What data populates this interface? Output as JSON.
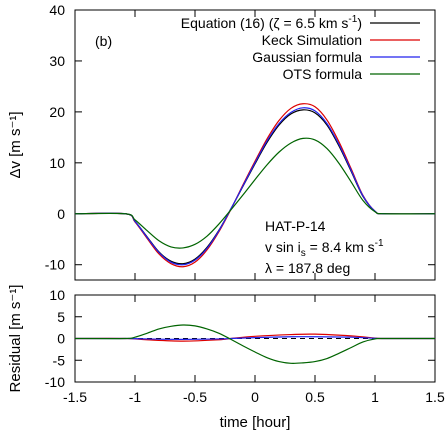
{
  "chart_data": [
    {
      "type": "line",
      "panel_label": "(b)",
      "ylabel": "Δv [m s⁻¹]",
      "xlim": [
        -1.5,
        1.5
      ],
      "ylim": [
        -13,
        40
      ],
      "yticks": [
        -10,
        0,
        10,
        20,
        30,
        40
      ],
      "ytick_labels": [
        "-10",
        "0",
        "10",
        "20",
        "30",
        "40"
      ],
      "legend_position": "top-right",
      "annotation": {
        "line1": "HAT-P-14",
        "line2": "v sin i",
        "line2_sub": "s",
        "line2_rest": " = 8.4 km s",
        "line2_sup": "-1",
        "line3": "λ = 187.8 deg"
      },
      "series": [
        {
          "name": "Equation (16) (ζ = 6.5 km s⁻¹)",
          "legend": {
            "pre": "Equation (16) (ζ = 6.5 km s",
            "sup": "-1",
            "post": ")"
          },
          "color": "#000000",
          "x": [
            -1.5,
            -1.08,
            -1.0,
            -0.9,
            -0.8,
            -0.7,
            -0.6,
            -0.5,
            -0.4,
            -0.3,
            -0.2,
            -0.1,
            0.0,
            0.1,
            0.2,
            0.3,
            0.4,
            0.5,
            0.6,
            0.7,
            0.8,
            0.9,
            1.0,
            1.08,
            1.5
          ],
          "y": [
            0,
            0,
            -1.5,
            -4.5,
            -7.5,
            -9.3,
            -9.8,
            -8.9,
            -6.6,
            -3.2,
            1.0,
            5.4,
            9.8,
            14.0,
            17.4,
            19.6,
            20.4,
            19.8,
            17.4,
            13.3,
            8.4,
            3.4,
            0.5,
            0,
            0
          ]
        },
        {
          "name": "Keck Simulation",
          "color": "#dd0000",
          "x": [
            -1.5,
            -1.08,
            -1.0,
            -0.9,
            -0.8,
            -0.7,
            -0.6,
            -0.5,
            -0.4,
            -0.3,
            -0.2,
            -0.1,
            0.0,
            0.1,
            0.2,
            0.3,
            0.4,
            0.5,
            0.6,
            0.7,
            0.8,
            0.9,
            1.0,
            1.08,
            1.5
          ],
          "y": [
            0,
            0,
            -1.6,
            -4.8,
            -7.9,
            -9.8,
            -10.4,
            -9.5,
            -7.1,
            -3.5,
            0.9,
            5.7,
            10.3,
            14.7,
            18.3,
            20.7,
            21.6,
            21.0,
            18.4,
            14.1,
            8.9,
            3.6,
            0.5,
            0,
            0
          ]
        },
        {
          "name": "Gaussian formula",
          "color": "#2222ee",
          "x": [
            -1.5,
            -1.08,
            -1.0,
            -0.9,
            -0.8,
            -0.7,
            -0.6,
            -0.5,
            -0.4,
            -0.3,
            -0.2,
            -0.1,
            0.0,
            0.1,
            0.2,
            0.3,
            0.4,
            0.5,
            0.6,
            0.7,
            0.8,
            0.9,
            1.0,
            1.08,
            1.5
          ],
          "y": [
            0,
            0,
            -1.5,
            -4.6,
            -7.6,
            -9.5,
            -10.0,
            -9.1,
            -6.8,
            -3.3,
            1.0,
            5.5,
            10.0,
            14.3,
            17.7,
            19.9,
            20.8,
            20.2,
            17.7,
            13.6,
            8.6,
            3.5,
            0.5,
            0,
            0
          ]
        },
        {
          "name": "OTS formula",
          "color": "#006400",
          "x": [
            -1.5,
            -1.08,
            -1.0,
            -0.9,
            -0.8,
            -0.7,
            -0.6,
            -0.5,
            -0.4,
            -0.3,
            -0.2,
            -0.1,
            0.0,
            0.1,
            0.2,
            0.3,
            0.4,
            0.5,
            0.6,
            0.7,
            0.8,
            0.9,
            1.0,
            1.08,
            1.5
          ],
          "y": [
            0,
            0,
            -1.2,
            -3.3,
            -5.3,
            -6.5,
            -6.7,
            -6.0,
            -4.4,
            -2.0,
            0.8,
            3.7,
            6.7,
            9.6,
            12.1,
            13.9,
            14.8,
            14.5,
            12.8,
            9.9,
            6.3,
            2.6,
            0.4,
            0,
            0
          ]
        }
      ]
    },
    {
      "type": "line",
      "ylabel": "Residual [m s⁻¹]",
      "xlabel": "time [hour]",
      "xlim": [
        -1.5,
        1.5
      ],
      "ylim": [
        -10,
        10
      ],
      "xticks": [
        -1.5,
        -1,
        -0.5,
        0,
        0.5,
        1,
        1.5
      ],
      "xtick_labels": [
        "-1.5",
        "-1",
        "-0.5",
        "0",
        "0.5",
        "1",
        "1.5"
      ],
      "yticks": [
        -10,
        -5,
        0,
        5,
        10
      ],
      "ytick_labels": [
        "-10",
        "-5",
        "0",
        "5",
        "10"
      ],
      "zero_line": "dashed",
      "series": [
        {
          "color": "#dd0000",
          "x": [
            -1.5,
            -1.08,
            -0.9,
            -0.6,
            -0.3,
            -0.2,
            0.0,
            0.3,
            0.5,
            0.8,
            1.0,
            1.08,
            1.5
          ],
          "y": [
            0,
            0,
            -0.3,
            -0.6,
            -0.3,
            0.0,
            0.5,
            0.9,
            1.0,
            0.6,
            0.1,
            0,
            0
          ]
        },
        {
          "color": "#2222ee",
          "x": [
            -1.5,
            -1.08,
            -0.9,
            -0.6,
            -0.3,
            -0.2,
            0.0,
            0.3,
            0.5,
            0.8,
            1.0,
            1.08,
            1.5
          ],
          "y": [
            0,
            0,
            -0.1,
            -0.2,
            -0.1,
            0.0,
            0.2,
            0.4,
            0.4,
            0.3,
            0.05,
            0,
            0
          ]
        },
        {
          "color": "#006400",
          "x": [
            -1.5,
            -1.08,
            -1.0,
            -0.9,
            -0.8,
            -0.7,
            -0.6,
            -0.5,
            -0.4,
            -0.3,
            -0.2,
            -0.1,
            0.0,
            0.1,
            0.2,
            0.3,
            0.4,
            0.5,
            0.6,
            0.7,
            0.8,
            0.9,
            1.0,
            1.08,
            1.5
          ],
          "y": [
            0,
            0,
            0.3,
            1.2,
            2.2,
            2.8,
            3.1,
            2.9,
            2.2,
            1.2,
            -0.2,
            -1.7,
            -3.1,
            -4.4,
            -5.3,
            -5.7,
            -5.6,
            -5.3,
            -4.6,
            -3.4,
            -2.1,
            -0.8,
            -0.1,
            0,
            0
          ]
        }
      ]
    }
  ]
}
